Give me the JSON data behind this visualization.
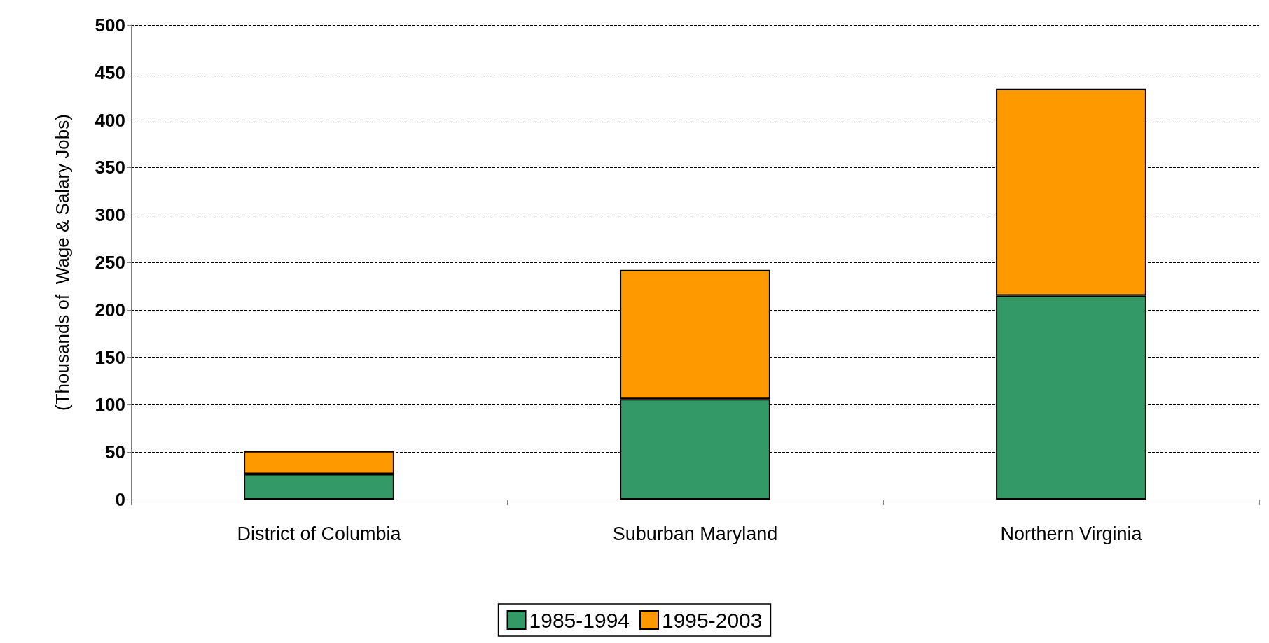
{
  "chart_data": {
    "type": "bar",
    "ylabel": "(Thousands of  Wage & Salary Jobs)",
    "categories": [
      "District of Columbia",
      "Suburban Maryland",
      "Northern Virginia"
    ],
    "stacked": true,
    "series": [
      {
        "name": "1985-1994",
        "color": "#339966",
        "values": [
          27,
          106,
          215
        ]
      },
      {
        "name": "1995-2003",
        "color": "#ff9900",
        "values": [
          24,
          136,
          218
        ]
      }
    ],
    "ylim": [
      0,
      500
    ],
    "yticks": [
      0,
      50,
      100,
      150,
      200,
      250,
      300,
      350,
      400,
      450,
      500
    ],
    "grid": "y",
    "legend": "bottom"
  }
}
